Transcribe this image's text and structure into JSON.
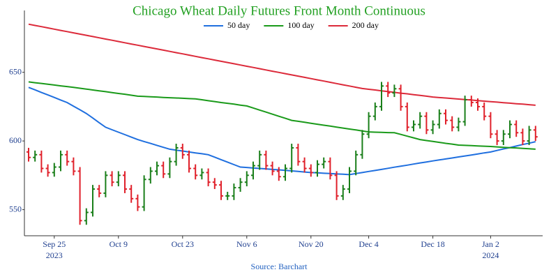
{
  "chart_data": {
    "type": "ohlc",
    "title": "Chicago Wheat Daily Futures Front Month Continuous",
    "title_color": "#22a022",
    "source": "Source: Barchart",
    "categories": [
      null,
      null,
      null,
      null,
      "Sep 25",
      null,
      null,
      null,
      null,
      null,
      null,
      null,
      null,
      null,
      "Oct 9",
      null,
      null,
      null,
      null,
      null,
      null,
      null,
      null,
      null,
      "Oct 23",
      null,
      null,
      null,
      null,
      null,
      null,
      null,
      null,
      null,
      "Nov 6",
      null,
      null,
      null,
      null,
      null,
      null,
      null,
      null,
      null,
      "Nov 20",
      null,
      null,
      null,
      null,
      null,
      null,
      null,
      null,
      "Dec 4",
      null,
      null,
      null,
      null,
      null,
      null,
      null,
      null,
      null,
      "Dec 18",
      null,
      null,
      null,
      null,
      null,
      null,
      null,
      null,
      "Jan 2",
      null,
      null,
      null,
      null,
      null,
      null,
      null
    ],
    "category_years": [
      null,
      null,
      null,
      null,
      "2023",
      null,
      null,
      null,
      null,
      null,
      null,
      null,
      null,
      null,
      null,
      null,
      null,
      null,
      null,
      null,
      null,
      null,
      null,
      null,
      null,
      null,
      null,
      null,
      null,
      null,
      null,
      null,
      null,
      null,
      null,
      null,
      null,
      null,
      null,
      null,
      null,
      null,
      null,
      null,
      null,
      null,
      null,
      null,
      null,
      null,
      null,
      null,
      null,
      null,
      null,
      null,
      null,
      null,
      null,
      null,
      null,
      null,
      null,
      null,
      null,
      null,
      null,
      null,
      null,
      null,
      null,
      null,
      "2024",
      null,
      null,
      null,
      null,
      null,
      null,
      null
    ],
    "ohlc": {
      "up_color": "#1a7f1a",
      "down_color": "#e0202a",
      "open": [
        592,
        588,
        590,
        580,
        577,
        581,
        590,
        585,
        578,
        542,
        548,
        565,
        562,
        575,
        570,
        575,
        565,
        558,
        552,
        572,
        578,
        582,
        576,
        585,
        595,
        590,
        580,
        575,
        577,
        570,
        568,
        560,
        560,
        566,
        570,
        575,
        582,
        590,
        582,
        578,
        574,
        580,
        595,
        585,
        580,
        577,
        583,
        585,
        575,
        560,
        565,
        578,
        590,
        605,
        618,
        625,
        640,
        635,
        638,
        625,
        610,
        612,
        618,
        608,
        612,
        620,
        615,
        610,
        614,
        630,
        628,
        625,
        618,
        605,
        600,
        605,
        612,
        606,
        600,
        608
      ],
      "high": [
        595,
        593,
        593,
        583,
        584,
        593,
        593,
        588,
        581,
        551,
        568,
        568,
        578,
        578,
        578,
        578,
        568,
        561,
        575,
        581,
        585,
        585,
        588,
        598,
        598,
        593,
        583,
        580,
        580,
        573,
        571,
        563,
        569,
        573,
        578,
        585,
        593,
        593,
        585,
        581,
        583,
        598,
        598,
        588,
        583,
        586,
        588,
        588,
        578,
        568,
        581,
        593,
        608,
        621,
        628,
        643,
        643,
        641,
        641,
        628,
        615,
        621,
        621,
        615,
        623,
        623,
        618,
        617,
        633,
        633,
        631,
        628,
        621,
        608,
        608,
        615,
        615,
        609,
        611,
        611
      ],
      "low": [
        585,
        585,
        577,
        574,
        574,
        578,
        582,
        575,
        539,
        539,
        545,
        559,
        559,
        567,
        567,
        562,
        555,
        549,
        549,
        569,
        575,
        573,
        573,
        582,
        587,
        577,
        572,
        572,
        567,
        565,
        557,
        557,
        557,
        563,
        567,
        572,
        579,
        579,
        575,
        571,
        571,
        577,
        582,
        577,
        574,
        574,
        580,
        572,
        557,
        557,
        562,
        575,
        587,
        602,
        615,
        622,
        632,
        632,
        622,
        607,
        607,
        609,
        605,
        605,
        609,
        612,
        607,
        607,
        611,
        625,
        622,
        615,
        602,
        597,
        597,
        602,
        603,
        597,
        597,
        600
      ],
      "close": [
        588,
        590,
        580,
        577,
        581,
        590,
        585,
        578,
        542,
        548,
        565,
        562,
        575,
        570,
        575,
        565,
        558,
        552,
        572,
        578,
        582,
        576,
        585,
        595,
        590,
        580,
        575,
        577,
        570,
        568,
        560,
        560,
        566,
        570,
        575,
        582,
        590,
        582,
        578,
        574,
        580,
        595,
        585,
        580,
        577,
        583,
        585,
        575,
        560,
        565,
        578,
        590,
        605,
        618,
        625,
        640,
        635,
        638,
        625,
        610,
        612,
        618,
        608,
        612,
        620,
        615,
        610,
        614,
        630,
        628,
        625,
        618,
        605,
        600,
        605,
        612,
        606,
        600,
        608,
        603
      ]
    },
    "series": [
      {
        "name": "50 day",
        "color": "#1f6fdf",
        "values": [
          639,
          637.2,
          635.3,
          633.5,
          631.7,
          629.8,
          628,
          625.3,
          622.7,
          620,
          616.7,
          613.3,
          610,
          608.2,
          606.4,
          604.6,
          602.8,
          601,
          599.6,
          598.2,
          596.8,
          595.4,
          594,
          593.3,
          592.7,
          592,
          591.3,
          590.7,
          590,
          588.2,
          586.4,
          584.6,
          582.8,
          581,
          580.7,
          580.3,
          580,
          579.7,
          579.3,
          579,
          578.6,
          578.2,
          577.8,
          577.4,
          577,
          576.8,
          576.5,
          576.3,
          576,
          575.8,
          575.5,
          576.3,
          577,
          577.8,
          578.5,
          579.3,
          580.1,
          580.9,
          581.6,
          582.4,
          583.2,
          584,
          584.7,
          585.5,
          586.2,
          586.9,
          587.6,
          588.4,
          589.1,
          589.8,
          590.5,
          591.3,
          592,
          593.1,
          594.2,
          595.2,
          596.3,
          597.4,
          598.4,
          599.5
        ]
      },
      {
        "name": "100 day",
        "color": "#1a9a1a",
        "values": [
          643,
          642.4,
          641.9,
          641.3,
          640.7,
          640.1,
          639.6,
          639,
          638.4,
          637.8,
          637.1,
          636.5,
          635.9,
          635.2,
          634.6,
          634,
          633.3,
          632.6,
          632.4,
          632.2,
          632,
          631.7,
          631.5,
          631.3,
          631.1,
          630.8,
          630.6,
          630,
          629.3,
          628.7,
          628,
          627.4,
          626.8,
          626.1,
          625.5,
          624,
          622.5,
          621,
          619.5,
          618,
          616.5,
          615,
          614.3,
          613.6,
          612.9,
          612.2,
          611.5,
          610.8,
          610.1,
          609.4,
          608.7,
          608,
          607.3,
          606.6,
          606.4,
          606.3,
          606.1,
          606,
          604.8,
          603.5,
          602.3,
          601,
          600.3,
          599.7,
          599,
          598.3,
          597.7,
          597,
          596.8,
          596.6,
          596.4,
          596.2,
          596,
          595.7,
          595.4,
          595.1,
          594.9,
          594.6,
          594.3,
          594
        ]
      },
      {
        "name": "200 day",
        "color": "#dc2a3a",
        "values": [
          685,
          684.1,
          683.2,
          682.3,
          681.4,
          680.5,
          679.6,
          678.7,
          677.8,
          676.9,
          676,
          675.1,
          674.2,
          673.3,
          672.4,
          671.5,
          670.6,
          669.7,
          668.8,
          667.9,
          667,
          666.1,
          665.2,
          664.3,
          663.4,
          662.5,
          661.6,
          660.7,
          659.8,
          658.9,
          658,
          657.1,
          656.2,
          655.3,
          654.4,
          653.5,
          652.6,
          651.7,
          650.8,
          649.9,
          649,
          648.1,
          647.2,
          646.3,
          645.4,
          644.5,
          643.6,
          642.7,
          641.8,
          640.9,
          640,
          639.1,
          638.2,
          637.6,
          637.1,
          636.5,
          636,
          635.4,
          634.8,
          634.3,
          633.7,
          633.2,
          632.6,
          632,
          631.6,
          631.3,
          630.9,
          630.5,
          630.1,
          629.8,
          629.4,
          629,
          628.6,
          628.3,
          627.9,
          627.5,
          627.1,
          626.8,
          626.4,
          626
        ]
      }
    ],
    "ylim": [
      531,
      695
    ],
    "yticks": [
      550,
      600,
      650
    ],
    "grid": false
  }
}
